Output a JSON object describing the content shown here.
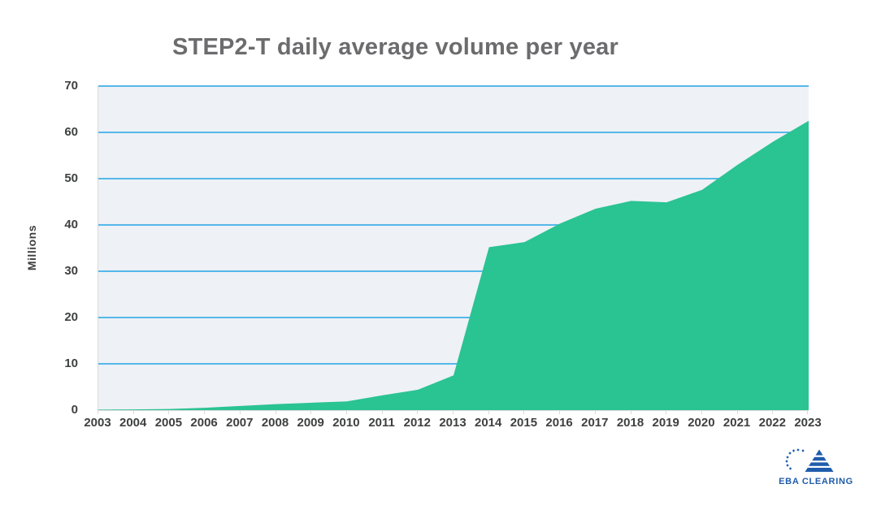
{
  "title": "STEP2-T daily average volume per year",
  "y_axis_label": "Millions",
  "logo": {
    "text": "EBA CLEARING"
  },
  "colors": {
    "area": "#2AC392",
    "gridline": "#55B8EA",
    "plot_background": "#EEF1F6",
    "axis_line": "#D9D9D9",
    "title_text": "#6C6C6E",
    "tick_text": "#3F4040",
    "logo_blue": "#1F5CAB"
  },
  "chart_data": {
    "type": "area",
    "title": "STEP2-T daily average volume per year",
    "xlabel": "",
    "ylabel": "Millions",
    "categories": [
      "2003",
      "2004",
      "2005",
      "2006",
      "2007",
      "2008",
      "2009",
      "2010",
      "2011",
      "2012",
      "2013",
      "2014",
      "2015",
      "2016",
      "2017",
      "2018",
      "2019",
      "2020",
      "2021",
      "2022",
      "2023"
    ],
    "values": [
      0.1,
      0.15,
      0.25,
      0.5,
      0.9,
      1.3,
      1.6,
      1.9,
      3.2,
      4.4,
      7.5,
      35.2,
      36.3,
      40.3,
      43.5,
      45.2,
      44.9,
      47.6,
      53.0,
      58.0,
      62.5
    ],
    "ylim": [
      0,
      70
    ],
    "yticks": [
      0,
      10,
      20,
      30,
      40,
      50,
      60,
      70
    ],
    "grid": true,
    "legend": false,
    "series_color": "#2AC392"
  }
}
